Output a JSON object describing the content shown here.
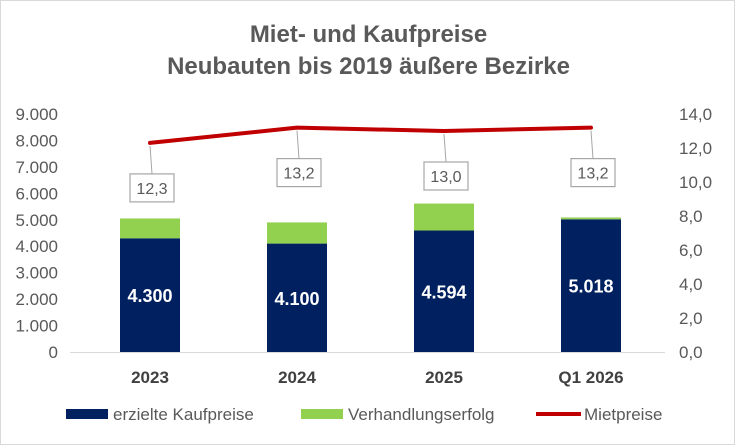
{
  "chart_data": {
    "type": "bar",
    "title": "Miet- und Kaufpreise",
    "subtitle": "Neubauten bis 2019 äußere Bezirke",
    "categories": [
      "2023",
      "2024",
      "2025",
      "Q1 2026"
    ],
    "y_left": {
      "range": [
        0,
        9000
      ],
      "ticks": [
        "0",
        "1.000",
        "2.000",
        "3.000",
        "4.000",
        "5.000",
        "6.000",
        "7.000",
        "8.000",
        "9.000"
      ]
    },
    "y_right": {
      "range": [
        0,
        14
      ],
      "ticks": [
        "0,0",
        "2,0",
        "4,0",
        "6,0",
        "8,0",
        "10,0",
        "12,0",
        "14,0"
      ]
    },
    "grid": false,
    "legend_position": "bottom",
    "series": [
      {
        "name": "erzielte Kaufpreise",
        "kind": "stacked-bar",
        "axis": "left",
        "color": "#002060",
        "values": [
          4300,
          4100,
          4594,
          5018
        ],
        "labels": [
          "4.300",
          "4.100",
          "4.594",
          "5.018"
        ]
      },
      {
        "name": "Verhandlungserfolg",
        "kind": "stacked-bar",
        "axis": "left",
        "color": "#92d050",
        "values": [
          750,
          800,
          1020,
          70
        ]
      },
      {
        "name": "Mietpreise",
        "kind": "line",
        "axis": "right",
        "color": "#c00000",
        "values": [
          12.3,
          13.2,
          13.0,
          13.2
        ],
        "labels": [
          "12,3",
          "13,2",
          "13,0",
          "13,2"
        ]
      }
    ]
  }
}
